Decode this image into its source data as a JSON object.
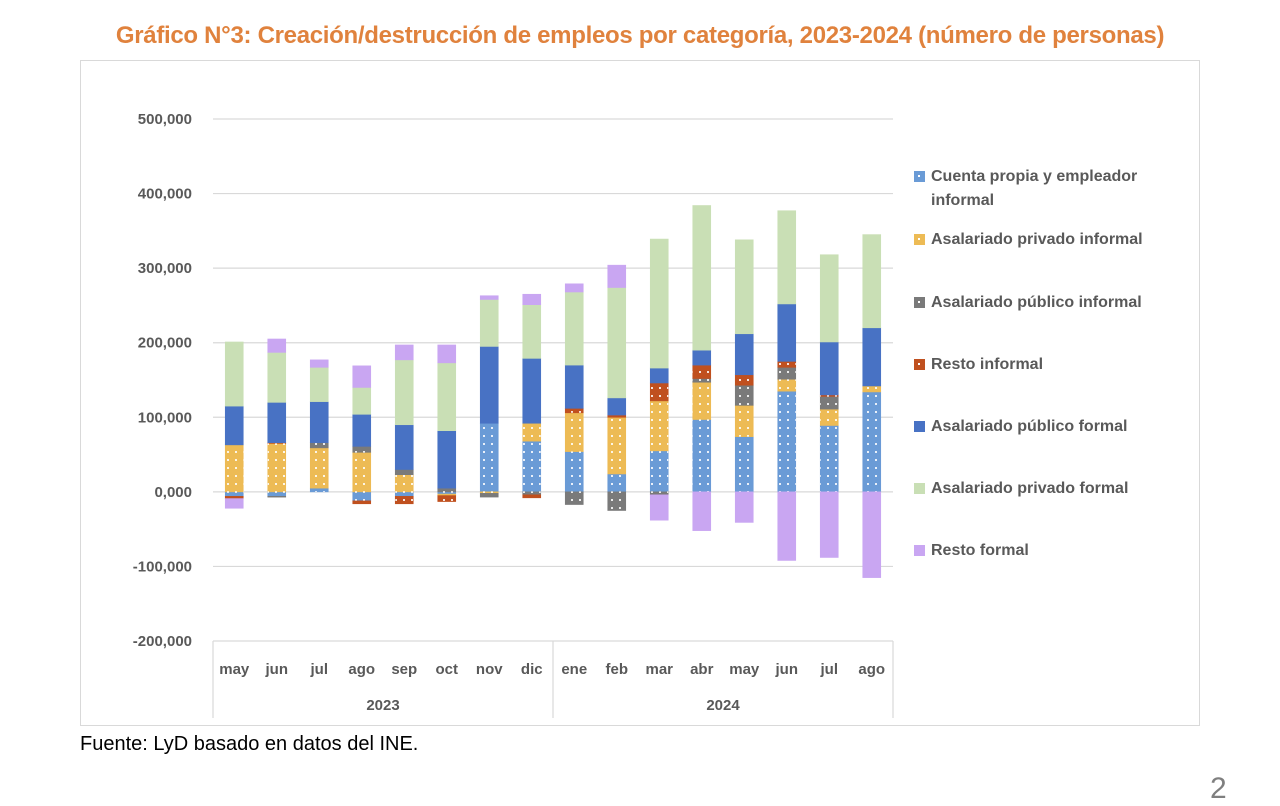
{
  "title": "Gráfico N°3: Creación/destrucción de empleos por categoría, 2023-2024 (número de personas)",
  "source": "Fuente: LyD basado en datos del INE.",
  "page_number": "2",
  "chart_data": {
    "type": "bar",
    "stacked": true,
    "title": "Gráfico N°3: Creación/destrucción de empleos por categoría, 2023-2024 (número de personas)",
    "xlabel": "",
    "ylabel": "",
    "ylim": [
      -200000,
      500000
    ],
    "yticks": [
      500000,
      400000,
      300000,
      200000,
      100000,
      0,
      -100000,
      -200000
    ],
    "ytick_labels": [
      "500,000",
      "400,000",
      "300,000",
      "200,000",
      "100,000",
      "0,000",
      "-100,000",
      "-200,000"
    ],
    "grid": true,
    "legend_position": "right",
    "categories": [
      "may",
      "jun",
      "jul",
      "ago",
      "sep",
      "oct",
      "nov",
      "dic",
      "ene",
      "feb",
      "mar",
      "abr",
      "may",
      "jun",
      "jul",
      "ago"
    ],
    "year_groups": [
      {
        "label": "2023",
        "count": 8
      },
      {
        "label": "2024",
        "count": 8
      }
    ],
    "series": [
      {
        "name": "Cuenta propia y empleador informal",
        "color": "#6A9BD6",
        "pattern": "dots",
        "values": [
          -6000,
          -6000,
          5000,
          -12000,
          -6000,
          -3000,
          92000,
          68000,
          54000,
          24000,
          55000,
          97000,
          74000,
          135000,
          89000,
          134000
        ]
      },
      {
        "name": "Asalariado privado informal",
        "color": "#EDBB55",
        "pattern": "dots",
        "values": [
          63000,
          65000,
          54000,
          53000,
          23000,
          -2000,
          -2000,
          24000,
          52000,
          76000,
          67000,
          50000,
          42000,
          16000,
          22000,
          8000
        ]
      },
      {
        "name": "Asalariado público informal",
        "color": "#7A7A7A",
        "pattern": "dots",
        "values": [
          0,
          -1000,
          7000,
          8000,
          7000,
          5000,
          -5000,
          -4000,
          -17000,
          -25000,
          -4000,
          5000,
          27000,
          16000,
          17000,
          0
        ]
      },
      {
        "name": "Resto informal",
        "color": "#C0501F",
        "pattern": "dots",
        "values": [
          -3000,
          1000,
          0,
          -4000,
          -10000,
          -8000,
          0,
          -4000,
          6000,
          3000,
          24000,
          18000,
          14000,
          8000,
          2000,
          0
        ]
      },
      {
        "name": "Asalariado público formal",
        "color": "#4872C4",
        "pattern": "none",
        "values": [
          52000,
          54000,
          55000,
          43000,
          60000,
          77000,
          103000,
          87000,
          58000,
          23000,
          20000,
          20000,
          55000,
          77000,
          71000,
          78000
        ]
      },
      {
        "name": "Asalariado privado formal",
        "color": "#C9DFB5",
        "pattern": "none",
        "values": [
          86000,
          67000,
          46000,
          36000,
          87000,
          91000,
          63000,
          72000,
          98000,
          148000,
          173000,
          194000,
          126000,
          125000,
          117000,
          125000
        ]
      },
      {
        "name": "Resto formal",
        "color": "#C9A6F2",
        "pattern": "none",
        "values": [
          -13000,
          18000,
          10000,
          29000,
          20000,
          24000,
          5000,
          14000,
          11000,
          30000,
          -34000,
          -52000,
          -41000,
          -92000,
          -88000,
          -115000
        ]
      }
    ]
  }
}
